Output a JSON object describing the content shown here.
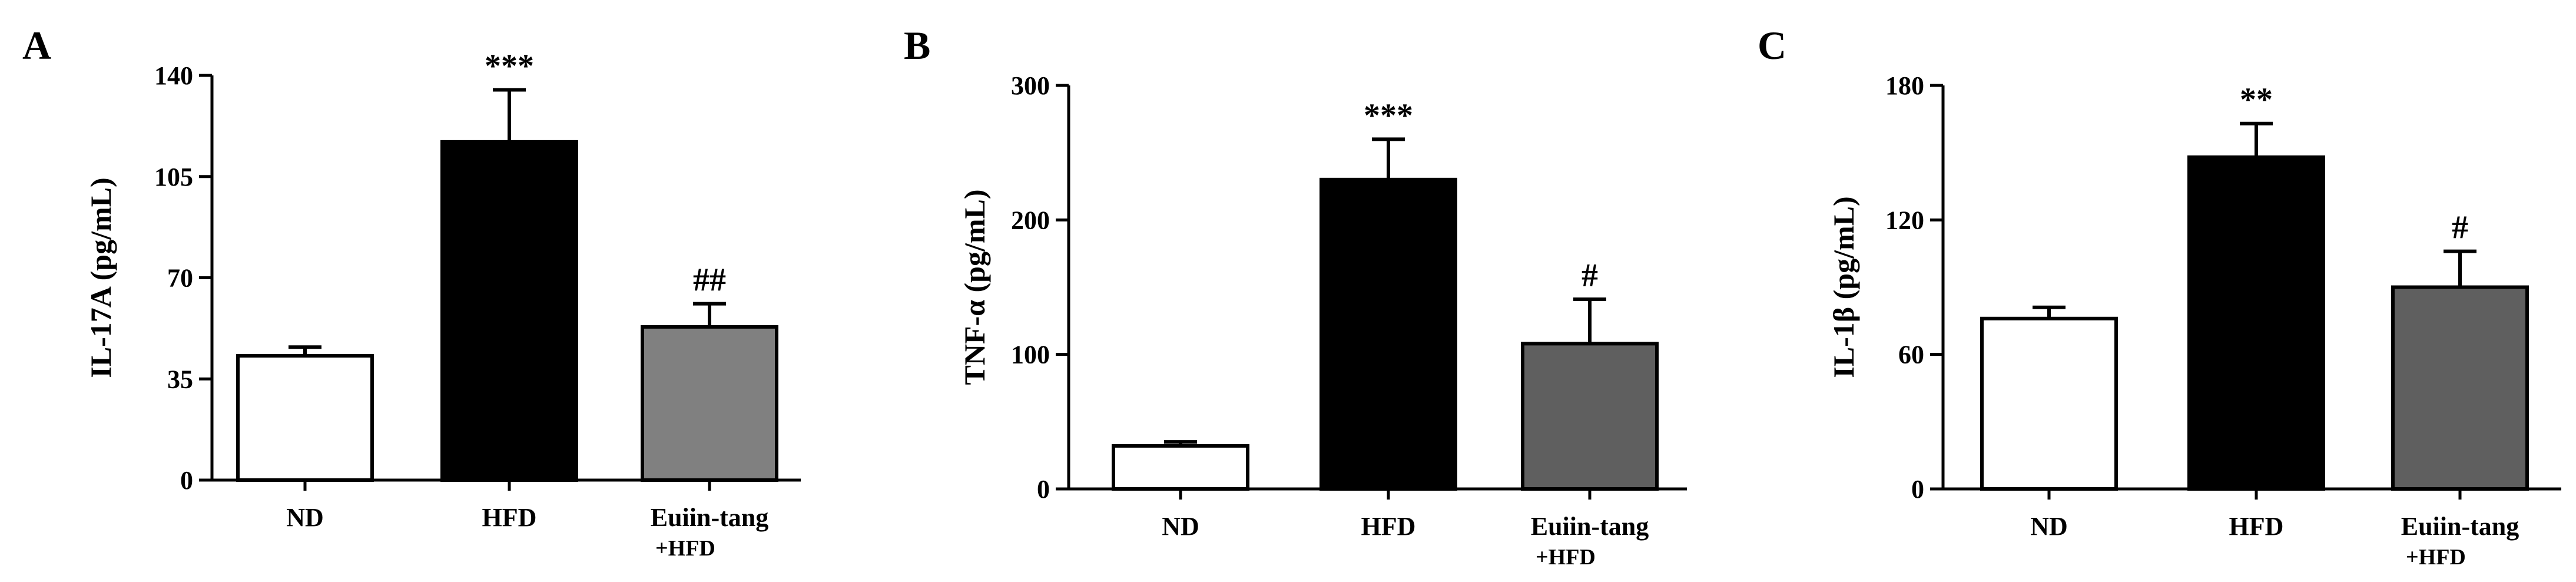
{
  "chart_data": [
    {
      "type": "bar",
      "panel_label": "A",
      "ylabel": "IL-17A (pg/mL)",
      "ylim": [
        0,
        140
      ],
      "yticks": [
        "0",
        "35",
        "70",
        "105",
        "140"
      ],
      "categories": [
        {
          "line1": "ND",
          "line2": ""
        },
        {
          "line1": "HFD",
          "line2": ""
        },
        {
          "line1": "Euiin-tang",
          "line2": "+HFD"
        }
      ],
      "values": [
        43,
        117,
        53
      ],
      "errors": [
        3,
        18,
        8
      ],
      "significance": [
        "",
        "***",
        "##"
      ],
      "bar_colors": [
        "#ffffff",
        "#000000",
        "#808080"
      ]
    },
    {
      "type": "bar",
      "panel_label": "B",
      "ylabel": "TNF-α (pg/mL)",
      "ylim": [
        0,
        300
      ],
      "yticks": [
        "0",
        "100",
        "200",
        "300"
      ],
      "categories": [
        {
          "line1": "ND",
          "line2": ""
        },
        {
          "line1": "HFD",
          "line2": ""
        },
        {
          "line1": "Euiin-tang",
          "line2": "+HFD"
        }
      ],
      "values": [
        32,
        230,
        108
      ],
      "errors": [
        3,
        30,
        33
      ],
      "significance": [
        "",
        "***",
        "#"
      ],
      "bar_colors": [
        "#ffffff",
        "#000000",
        "#5f5f5f"
      ]
    },
    {
      "type": "bar",
      "panel_label": "C",
      "ylabel": "IL-1β (pg/mL)",
      "ylim": [
        0,
        180
      ],
      "yticks": [
        "0",
        "60",
        "120",
        "180"
      ],
      "categories": [
        {
          "line1": "ND",
          "line2": ""
        },
        {
          "line1": "HFD",
          "line2": ""
        },
        {
          "line1": "Euiin-tang",
          "line2": "+HFD"
        }
      ],
      "values": [
        76,
        148,
        90
      ],
      "errors": [
        5,
        15,
        16
      ],
      "significance": [
        "",
        "**",
        "#"
      ],
      "bar_colors": [
        "#ffffff",
        "#000000",
        "#5f5f5f"
      ]
    }
  ]
}
